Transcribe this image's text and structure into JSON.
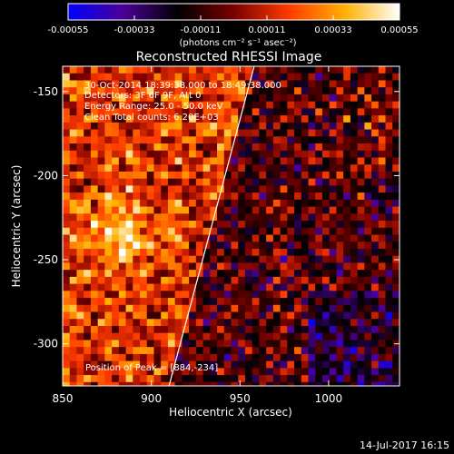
{
  "chart_data": {
    "type": "heatmap",
    "title": "Reconstructed RHESSI Image",
    "xlabel": "Heliocentric X (arcsec)",
    "ylabel": "Heliocentric Y (arcsec)",
    "xlim": [
      850,
      1040
    ],
    "ylim": [
      -325,
      -135
    ],
    "xticks": [
      "850",
      "900",
      "950",
      "1000"
    ],
    "yticks": [
      "-150",
      "-200",
      "-250",
      "-300"
    ],
    "colorbar": {
      "ticks": [
        "-0.00055",
        "-0.00033",
        "-0.00011",
        "0.00011",
        "0.00033",
        "0.00055"
      ],
      "range": [
        -0.00055,
        0.00055
      ],
      "units": "(photons cm⁻² s⁻¹ asec⁻²)",
      "colors": [
        "#0000ff",
        "#4b0096",
        "#000000",
        "#7a0000",
        "#ff3a00",
        "#ffb000",
        "#ffffff"
      ]
    },
    "annotations": [
      "30-Oct-2014 18:39:38.000 to 18:49:38.000",
      "Detectors: 3F 6F 9F, Att 0",
      "Energy Range: 25.0 - 50.0 keV",
      "Clean    Total counts: 6.20E+03"
    ],
    "peak_label": "Position of Peak = [884,-234]",
    "peak": [
      884,
      -234
    ],
    "limb_line": [
      [
        910,
        -325
      ],
      [
        958,
        -135
      ]
    ]
  },
  "footer_timestamp": "14-Jul-2017 16:15"
}
